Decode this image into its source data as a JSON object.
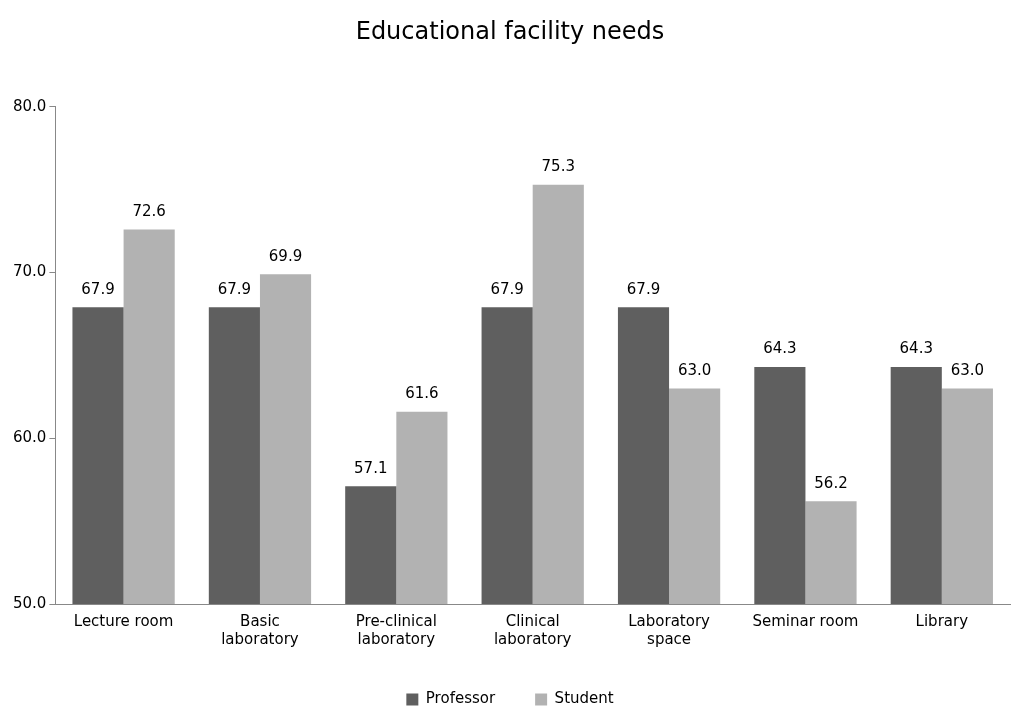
{
  "chart_data": {
    "type": "bar",
    "title": "Educational facility needs",
    "categories": [
      "Lecture room",
      "Basic laboratory",
      "Pre-clinical laboratory",
      "Clinical laboratory",
      "Laboratory space",
      "Seminar room",
      "Library"
    ],
    "series": [
      {
        "name": "Professor",
        "color": "#5f5f5f",
        "values": [
          67.9,
          67.9,
          57.1,
          67.9,
          67.9,
          64.3,
          64.3
        ],
        "value_labels": [
          "67.9",
          "67.9",
          "57.1",
          "67.9",
          "67.9",
          "64.3",
          "64.3"
        ]
      },
      {
        "name": "Student",
        "color": "#b2b2b2",
        "values": [
          72.6,
          69.9,
          61.6,
          75.3,
          63.0,
          56.2,
          63.0
        ],
        "value_labels": [
          "72.6",
          "69.9",
          "61.6",
          "75.3",
          "63.0",
          "56.2",
          "63.0"
        ]
      }
    ],
    "ylim": [
      50,
      80
    ],
    "yticks": [
      {
        "value": 50,
        "label": "50.0"
      },
      {
        "value": 60,
        "label": "60.0"
      },
      {
        "value": 70,
        "label": "70.0"
      },
      {
        "value": 80,
        "label": "80.0"
      }
    ],
    "grid": false,
    "legend": "bottom"
  }
}
